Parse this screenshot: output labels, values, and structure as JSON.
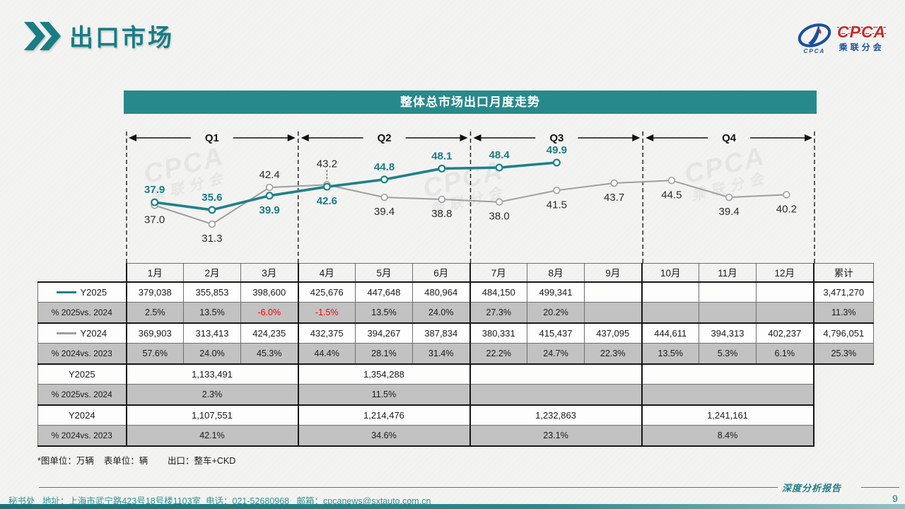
{
  "page": {
    "title": "出口市场",
    "page_number": "9",
    "footnote": "*图单位：万辆    表单位：辆        出口：整车+CKD",
    "footer": {
      "report_label": "深度分析报告",
      "contact": "秘书处   地址：上海市武宁路423号18号楼1103室  电话：021-52680968   邮箱：cpcanews@sxtauto.com.cn"
    },
    "logo": {
      "main": "CPCA",
      "sub": "乘联分会"
    },
    "watermark": {
      "line1": "CPCA",
      "line2": "乘联分会"
    }
  },
  "colors": {
    "teal_line": "#1e8188",
    "teal_text": "#187d84",
    "titlebar_bg": "#28898b",
    "gray_line": "#9e9e9e",
    "gray_label": "#2a2a2a",
    "negative_red": "#fe0000",
    "pct_row_bg": "#c2c2c2"
  },
  "chart_data": {
    "type": "line",
    "title": "整体总市场出口月度走势",
    "unit_note": "万辆",
    "x": [
      "1月",
      "2月",
      "3月",
      "4月",
      "5月",
      "6月",
      "7月",
      "8月",
      "9月",
      "10月",
      "11月",
      "12月"
    ],
    "quarters": [
      "Q1",
      "Q2",
      "Q3",
      "Q4"
    ],
    "ylim": [
      28,
      54
    ],
    "grid": false,
    "series": [
      {
        "name": "Y2024",
        "color": "#9e9e9e",
        "values": [
          37.0,
          31.3,
          42.4,
          43.2,
          39.4,
          38.8,
          38.0,
          41.5,
          43.7,
          44.5,
          39.4,
          40.2
        ],
        "label_pos": [
          "below",
          "below",
          "above",
          "above-connector",
          "below",
          "below",
          "below",
          "below",
          "below",
          "below",
          "below",
          "below"
        ]
      },
      {
        "name": "Y2025",
        "color": "#1e8188",
        "values": [
          37.9,
          35.6,
          39.9,
          42.6,
          44.8,
          48.1,
          48.4,
          49.9
        ],
        "label_pos": [
          "above",
          "above",
          "below",
          "below",
          "above",
          "above",
          "above",
          "above"
        ]
      }
    ]
  },
  "table": {
    "col_headers": [
      "1月",
      "2月",
      "3月",
      "4月",
      "5月",
      "6月",
      "7月",
      "8月",
      "9月",
      "10月",
      "11月",
      "12月",
      "累计"
    ],
    "monthly_rows": [
      {
        "label": "Y2025",
        "legend_color": "#1e8188",
        "kind": "value",
        "values": [
          "379,038",
          "355,853",
          "398,600",
          "425,676",
          "447,648",
          "480,964",
          "484,150",
          "499,341",
          "",
          "",
          "",
          "",
          "3,471,270"
        ]
      },
      {
        "label": "% 2025vs. 2024",
        "kind": "pct",
        "red_indices": [
          2,
          3
        ],
        "values": [
          "2.5%",
          "13.5%",
          "-6.0%",
          "-1.5%",
          "13.5%",
          "24.0%",
          "27.3%",
          "20.2%",
          "",
          "",
          "",
          "",
          "11.3%"
        ]
      },
      {
        "label": "Y2024",
        "legend_color": "#9e9e9e",
        "kind": "value",
        "values": [
          "369,903",
          "313,413",
          "424,235",
          "432,375",
          "394,267",
          "387,834",
          "380,331",
          "415,437",
          "437,095",
          "444,611",
          "394,313",
          "402,237",
          "4,796,051"
        ]
      },
      {
        "label": "% 2024vs. 2023",
        "kind": "pct",
        "values": [
          "57.6%",
          "24.0%",
          "45.3%",
          "44.4%",
          "28.1%",
          "31.4%",
          "22.2%",
          "24.7%",
          "22.3%",
          "13.5%",
          "5.3%",
          "6.1%",
          "25.3%"
        ]
      }
    ],
    "quarterly_rows": [
      {
        "label": "Y2025",
        "kind": "value",
        "values": [
          "1,133,491",
          "1,354,288",
          "",
          ""
        ]
      },
      {
        "label": "% 2025vs. 2024",
        "kind": "pct",
        "values": [
          "2.3%",
          "11.5%",
          "",
          ""
        ]
      },
      {
        "label": "Y2024",
        "kind": "value",
        "values": [
          "1,107,551",
          "1,214,476",
          "1,232,863",
          "1,241,161"
        ]
      },
      {
        "label": "% 2024vs. 2023",
        "kind": "pct",
        "values": [
          "42.1%",
          "34.6%",
          "23.1%",
          "8.4%"
        ]
      }
    ]
  }
}
